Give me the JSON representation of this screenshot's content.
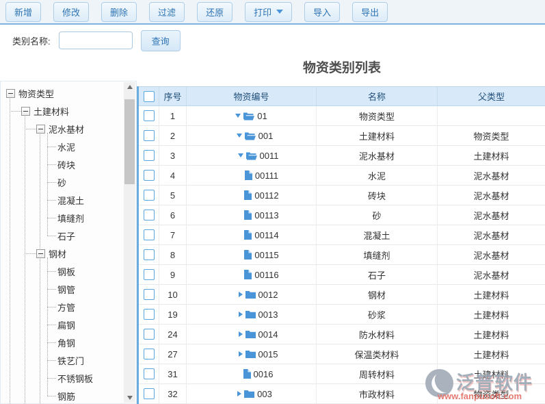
{
  "toolbar": {
    "buttons": [
      {
        "name": "new",
        "label": "新增",
        "dropdown": false
      },
      {
        "name": "edit",
        "label": "修改",
        "dropdown": false
      },
      {
        "name": "delete",
        "label": "删除",
        "dropdown": false
      },
      {
        "name": "filter",
        "label": "过滤",
        "dropdown": false
      },
      {
        "name": "restore",
        "label": "还原",
        "dropdown": false
      },
      {
        "name": "print",
        "label": "打印",
        "dropdown": true
      },
      {
        "name": "import",
        "label": "导入",
        "dropdown": false
      },
      {
        "name": "export",
        "label": "导出",
        "dropdown": false
      }
    ]
  },
  "filter": {
    "label": "类别名称:",
    "input_value": "",
    "search_label": "查询"
  },
  "title": "物资类别列表",
  "tree": {
    "items": [
      {
        "label": "物资类型",
        "depth": 0,
        "expander": true
      },
      {
        "label": "土建材料",
        "depth": 1,
        "expander": true
      },
      {
        "label": "泥水基材",
        "depth": 2,
        "expander": true
      },
      {
        "label": "水泥",
        "depth": 3,
        "expander": false
      },
      {
        "label": "砖块",
        "depth": 3,
        "expander": false
      },
      {
        "label": "砂",
        "depth": 3,
        "expander": false
      },
      {
        "label": "混凝土",
        "depth": 3,
        "expander": false
      },
      {
        "label": "填缝剂",
        "depth": 3,
        "expander": false
      },
      {
        "label": "石子",
        "depth": 3,
        "expander": false
      },
      {
        "label": "钢材",
        "depth": 2,
        "expander": true
      },
      {
        "label": "钢板",
        "depth": 3,
        "expander": false
      },
      {
        "label": "钢管",
        "depth": 3,
        "expander": false
      },
      {
        "label": "方管",
        "depth": 3,
        "expander": false
      },
      {
        "label": "扁钢",
        "depth": 3,
        "expander": false
      },
      {
        "label": "角钢",
        "depth": 3,
        "expander": false
      },
      {
        "label": "铁艺门",
        "depth": 3,
        "expander": false
      },
      {
        "label": "不锈钢板",
        "depth": 3,
        "expander": false
      },
      {
        "label": "钢筋",
        "depth": 3,
        "expander": false
      }
    ]
  },
  "table": {
    "headers": [
      "序号",
      "物资编号",
      "名称",
      "父类型"
    ],
    "rows": [
      {
        "num": "1",
        "code": "01",
        "name": "物资类型",
        "parent": "",
        "icon": "folder-open",
        "arrow": "down",
        "depth": 0
      },
      {
        "num": "2",
        "code": "001",
        "name": "土建材料",
        "parent": "物资类型",
        "icon": "folder-open",
        "arrow": "down",
        "depth": 1
      },
      {
        "num": "3",
        "code": "0011",
        "name": "泥水基材",
        "parent": "土建材料",
        "icon": "folder-open",
        "arrow": "down",
        "depth": 2
      },
      {
        "num": "4",
        "code": "00111",
        "name": "水泥",
        "parent": "泥水基材",
        "icon": "file",
        "arrow": "none",
        "depth": 3
      },
      {
        "num": "5",
        "code": "00112",
        "name": "砖块",
        "parent": "泥水基材",
        "icon": "file",
        "arrow": "none",
        "depth": 3
      },
      {
        "num": "6",
        "code": "00113",
        "name": "砂",
        "parent": "泥水基材",
        "icon": "file",
        "arrow": "none",
        "depth": 3
      },
      {
        "num": "7",
        "code": "00114",
        "name": "混凝土",
        "parent": "泥水基材",
        "icon": "file",
        "arrow": "none",
        "depth": 3
      },
      {
        "num": "8",
        "code": "00115",
        "name": "填缝剂",
        "parent": "泥水基材",
        "icon": "file",
        "arrow": "none",
        "depth": 3
      },
      {
        "num": "9",
        "code": "00116",
        "name": "石子",
        "parent": "泥水基材",
        "icon": "file",
        "arrow": "none",
        "depth": 3
      },
      {
        "num": "10",
        "code": "0012",
        "name": "钢材",
        "parent": "土建材料",
        "icon": "folder-closed",
        "arrow": "right",
        "depth": 2
      },
      {
        "num": "19",
        "code": "0013",
        "name": "砂浆",
        "parent": "土建材料",
        "icon": "folder-closed",
        "arrow": "right",
        "depth": 2
      },
      {
        "num": "24",
        "code": "0014",
        "name": "防水材料",
        "parent": "土建材料",
        "icon": "folder-closed",
        "arrow": "right",
        "depth": 2
      },
      {
        "num": "27",
        "code": "0015",
        "name": "保温类材料",
        "parent": "土建材料",
        "icon": "folder-closed",
        "arrow": "right",
        "depth": 2
      },
      {
        "num": "31",
        "code": "0016",
        "name": "周转材料",
        "parent": "土建材料",
        "icon": "file",
        "arrow": "none",
        "depth": 2
      },
      {
        "num": "32",
        "code": "003",
        "name": "市政材料",
        "parent": "物资类型",
        "icon": "folder-closed",
        "arrow": "right",
        "depth": 1
      }
    ]
  },
  "watermark": {
    "brand": "泛普软件",
    "url": "www.fanpusoft.com"
  },
  "colors": {
    "accent_blue": "#4a94d8",
    "header_bg": "#d8eafa",
    "header_text": "#1f4e79",
    "toolbar_line": "#7fb2e0",
    "button_text": "#2e74b5",
    "watermark_red": "#e2695f"
  }
}
